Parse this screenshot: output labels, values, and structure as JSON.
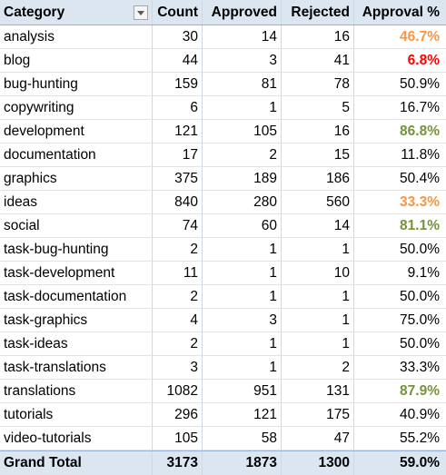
{
  "headers": {
    "category": "Category",
    "count": "Count",
    "approved": "Approved",
    "rejected": "Rejected",
    "approval": "Approval %"
  },
  "rows": [
    {
      "category": "analysis",
      "count": "30",
      "approved": "14",
      "rejected": "16",
      "approval": "46.7%",
      "flag": "warn"
    },
    {
      "category": "blog",
      "count": "44",
      "approved": "3",
      "rejected": "41",
      "approval": "6.8%",
      "flag": "bad"
    },
    {
      "category": "bug-hunting",
      "count": "159",
      "approved": "81",
      "rejected": "78",
      "approval": "50.9%",
      "flag": ""
    },
    {
      "category": "copywriting",
      "count": "6",
      "approved": "1",
      "rejected": "5",
      "approval": "16.7%",
      "flag": ""
    },
    {
      "category": "development",
      "count": "121",
      "approved": "105",
      "rejected": "16",
      "approval": "86.8%",
      "flag": "good"
    },
    {
      "category": "documentation",
      "count": "17",
      "approved": "2",
      "rejected": "15",
      "approval": "11.8%",
      "flag": ""
    },
    {
      "category": "graphics",
      "count": "375",
      "approved": "189",
      "rejected": "186",
      "approval": "50.4%",
      "flag": ""
    },
    {
      "category": "ideas",
      "count": "840",
      "approved": "280",
      "rejected": "560",
      "approval": "33.3%",
      "flag": "warn"
    },
    {
      "category": "social",
      "count": "74",
      "approved": "60",
      "rejected": "14",
      "approval": "81.1%",
      "flag": "good"
    },
    {
      "category": "task-bug-hunting",
      "count": "2",
      "approved": "1",
      "rejected": "1",
      "approval": "50.0%",
      "flag": ""
    },
    {
      "category": "task-development",
      "count": "11",
      "approved": "1",
      "rejected": "10",
      "approval": "9.1%",
      "flag": ""
    },
    {
      "category": "task-documentation",
      "count": "2",
      "approved": "1",
      "rejected": "1",
      "approval": "50.0%",
      "flag": ""
    },
    {
      "category": "task-graphics",
      "count": "4",
      "approved": "3",
      "rejected": "1",
      "approval": "75.0%",
      "flag": ""
    },
    {
      "category": "task-ideas",
      "count": "2",
      "approved": "1",
      "rejected": "1",
      "approval": "50.0%",
      "flag": ""
    },
    {
      "category": "task-translations",
      "count": "3",
      "approved": "1",
      "rejected": "2",
      "approval": "33.3%",
      "flag": ""
    },
    {
      "category": "translations",
      "count": "1082",
      "approved": "951",
      "rejected": "131",
      "approval": "87.9%",
      "flag": "good"
    },
    {
      "category": "tutorials",
      "count": "296",
      "approved": "121",
      "rejected": "175",
      "approval": "40.9%",
      "flag": ""
    },
    {
      "category": "video-tutorials",
      "count": "105",
      "approved": "58",
      "rejected": "47",
      "approval": "55.2%",
      "flag": ""
    }
  ],
  "total": {
    "label": "Grand Total",
    "count": "3173",
    "approved": "1873",
    "rejected": "1300",
    "approval": "59.0%"
  },
  "colors": {
    "good": "#76933c",
    "warn": "#f79646",
    "bad": "#ff0000",
    "header_bg": "#dce6f1"
  },
  "icons": {
    "filter": "filter-dropdown-icon"
  }
}
